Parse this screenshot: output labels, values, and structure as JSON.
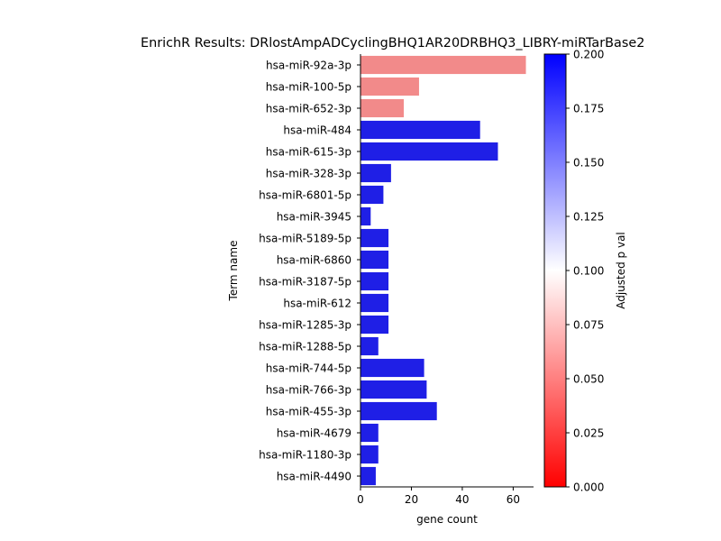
{
  "chart_data": {
    "type": "bar",
    "orientation": "horizontal",
    "title": "EnrichR Results: DRlostAmpADCyclingBHQ1AR20DRBHQ3_LIBRY-miRTarBase2",
    "xlabel": "gene count",
    "ylabel": "Term name",
    "xlim": [
      0,
      68
    ],
    "x_ticks": [
      0,
      20,
      40,
      60
    ],
    "categories": [
      "hsa-miR-92a-3p",
      "hsa-miR-100-5p",
      "hsa-miR-652-3p",
      "hsa-miR-484",
      "hsa-miR-615-3p",
      "hsa-miR-328-3p",
      "hsa-miR-6801-5p",
      "hsa-miR-3945",
      "hsa-miR-5189-5p",
      "hsa-miR-6860",
      "hsa-miR-3187-5p",
      "hsa-miR-612",
      "hsa-miR-1285-3p",
      "hsa-miR-1288-5p",
      "hsa-miR-744-5p",
      "hsa-miR-766-3p",
      "hsa-miR-455-3p",
      "hsa-miR-4679",
      "hsa-miR-1180-3p",
      "hsa-miR-4490"
    ],
    "values": [
      65,
      23,
      17,
      47,
      54,
      12,
      9,
      4,
      11,
      11,
      11,
      11,
      11,
      7,
      25,
      26,
      30,
      7,
      7,
      6
    ],
    "bar_colors": [
      "#f28a8a",
      "#f28a8a",
      "#f28a8a",
      "#1f1fe6",
      "#1f1fe6",
      "#1f1fe6",
      "#1f1fe6",
      "#1f1fe6",
      "#1f1fe6",
      "#1f1fe6",
      "#1f1fe6",
      "#1f1fe6",
      "#1f1fe6",
      "#1f1fe6",
      "#1f1fe6",
      "#1f1fe6",
      "#1f1fe6",
      "#1f1fe6",
      "#1f1fe6",
      "#1f1fe6"
    ],
    "colorbar": {
      "label": "Adjusted p val",
      "range": [
        0,
        0.2
      ],
      "ticks": [
        "0.000",
        "0.025",
        "0.050",
        "0.075",
        "0.100",
        "0.125",
        "0.150",
        "0.175",
        "0.200"
      ],
      "colormap": [
        "#ff0000",
        "#ffffff",
        "#0000ff"
      ]
    },
    "grid": false,
    "legend": "none"
  }
}
